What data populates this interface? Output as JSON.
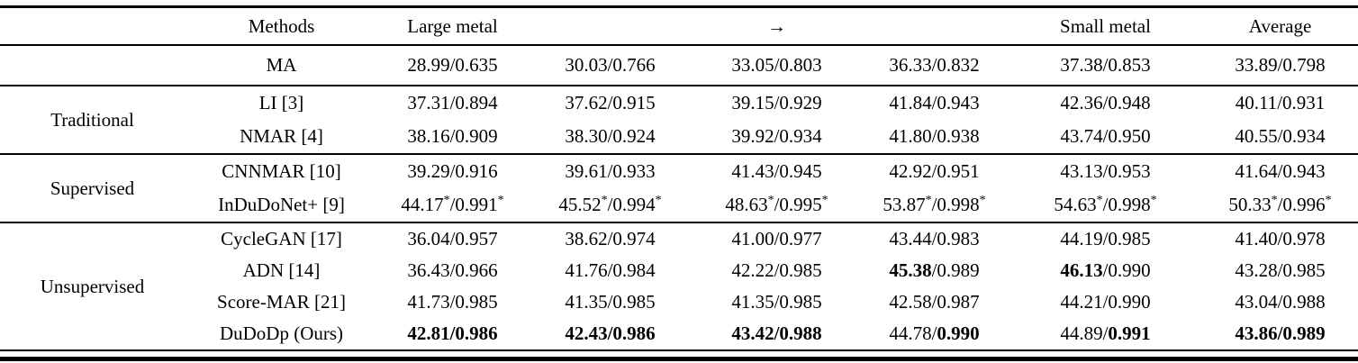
{
  "symbols": {
    "separator": "/",
    "star": "*"
  },
  "header": {
    "cells": [
      {
        "label": ""
      },
      {
        "label": "Methods"
      },
      {
        "label": "Large metal"
      },
      {
        "label": ""
      },
      {
        "label": "→",
        "icon": "right-arrow"
      },
      {
        "label": ""
      },
      {
        "label": "Small metal"
      },
      {
        "label": "Average"
      }
    ]
  },
  "groups": [
    {
      "category": "",
      "rows": [
        {
          "method": "MA",
          "cells": [
            {
              "psnr": "28.99",
              "ssim": "0.635"
            },
            {
              "psnr": "30.03",
              "ssim": "0.766"
            },
            {
              "psnr": "33.05",
              "ssim": "0.803"
            },
            {
              "psnr": "36.33",
              "ssim": "0.832"
            },
            {
              "psnr": "37.38",
              "ssim": "0.853"
            },
            {
              "psnr": "33.89",
              "ssim": "0.798"
            }
          ]
        }
      ]
    },
    {
      "category": "Traditional",
      "rows": [
        {
          "method": "LI [3]",
          "cells": [
            {
              "psnr": "37.31",
              "ssim": "0.894"
            },
            {
              "psnr": "37.62",
              "ssim": "0.915"
            },
            {
              "psnr": "39.15",
              "ssim": "0.929"
            },
            {
              "psnr": "41.84",
              "ssim": "0.943"
            },
            {
              "psnr": "42.36",
              "ssim": "0.948"
            },
            {
              "psnr": "40.11",
              "ssim": "0.931"
            }
          ]
        },
        {
          "method": "NMAR [4]",
          "cells": [
            {
              "psnr": "38.16",
              "ssim": "0.909"
            },
            {
              "psnr": "38.30",
              "ssim": "0.924"
            },
            {
              "psnr": "39.92",
              "ssim": "0.934"
            },
            {
              "psnr": "41.80",
              "ssim": "0.938"
            },
            {
              "psnr": "43.74",
              "ssim": "0.950"
            },
            {
              "psnr": "40.55",
              "ssim": "0.934"
            }
          ]
        }
      ]
    },
    {
      "category": "Supervised",
      "rows": [
        {
          "method": "CNNMAR [10]",
          "cells": [
            {
              "psnr": "39.29",
              "ssim": "0.916"
            },
            {
              "psnr": "39.61",
              "ssim": "0.933"
            },
            {
              "psnr": "41.43",
              "ssim": "0.945"
            },
            {
              "psnr": "42.92",
              "ssim": "0.951"
            },
            {
              "psnr": "43.13",
              "ssim": "0.953"
            },
            {
              "psnr": "41.64",
              "ssim": "0.943"
            }
          ]
        },
        {
          "method": "InDuDoNet+ [9]",
          "cells": [
            {
              "psnr": "44.17",
              "ssim": "0.991",
              "star": true
            },
            {
              "psnr": "45.52",
              "ssim": "0.994",
              "star": true
            },
            {
              "psnr": "48.63",
              "ssim": "0.995",
              "star": true
            },
            {
              "psnr": "53.87",
              "ssim": "0.998",
              "star": true
            },
            {
              "psnr": "54.63",
              "ssim": "0.998",
              "star": true
            },
            {
              "psnr": "50.33",
              "ssim": "0.996",
              "star": true
            }
          ]
        }
      ]
    },
    {
      "category": "Unsupervised",
      "rows": [
        {
          "method": "CycleGAN [17]",
          "cells": [
            {
              "psnr": "36.04",
              "ssim": "0.957"
            },
            {
              "psnr": "38.62",
              "ssim": "0.974"
            },
            {
              "psnr": "41.00",
              "ssim": "0.977"
            },
            {
              "psnr": "43.44",
              "ssim": "0.983"
            },
            {
              "psnr": "44.19",
              "ssim": "0.985"
            },
            {
              "psnr": "41.40",
              "ssim": "0.978"
            }
          ]
        },
        {
          "method": "ADN [14]",
          "cells": [
            {
              "psnr": "36.43",
              "ssim": "0.966"
            },
            {
              "psnr": "41.76",
              "ssim": "0.984"
            },
            {
              "psnr": "42.22",
              "ssim": "0.985"
            },
            {
              "psnr": "45.38",
              "ssim": "0.989",
              "bp": true
            },
            {
              "psnr": "46.13",
              "ssim": "0.990",
              "bp": true
            },
            {
              "psnr": "43.28",
              "ssim": "0.985"
            }
          ]
        },
        {
          "method": "Score-MAR [21]",
          "cells": [
            {
              "psnr": "41.73",
              "ssim": "0.985"
            },
            {
              "psnr": "41.35",
              "ssim": "0.985"
            },
            {
              "psnr": "41.35",
              "ssim": "0.985"
            },
            {
              "psnr": "42.58",
              "ssim": "0.987"
            },
            {
              "psnr": "44.21",
              "ssim": "0.990"
            },
            {
              "psnr": "43.04",
              "ssim": "0.988"
            }
          ]
        },
        {
          "method": "DuDoDp (Ours)",
          "cells": [
            {
              "psnr": "42.81",
              "ssim": "0.986",
              "bp": true,
              "bs": true
            },
            {
              "psnr": "42.43",
              "ssim": "0.986",
              "bp": true,
              "bs": true
            },
            {
              "psnr": "43.42",
              "ssim": "0.988",
              "bp": true,
              "bs": true
            },
            {
              "psnr": "44.78",
              "ssim": "0.990",
              "bs": true
            },
            {
              "psnr": "44.89",
              "ssim": "0.991",
              "bs": true
            },
            {
              "psnr": "43.86",
              "ssim": "0.989",
              "bp": true,
              "bs": true
            }
          ]
        }
      ]
    }
  ]
}
